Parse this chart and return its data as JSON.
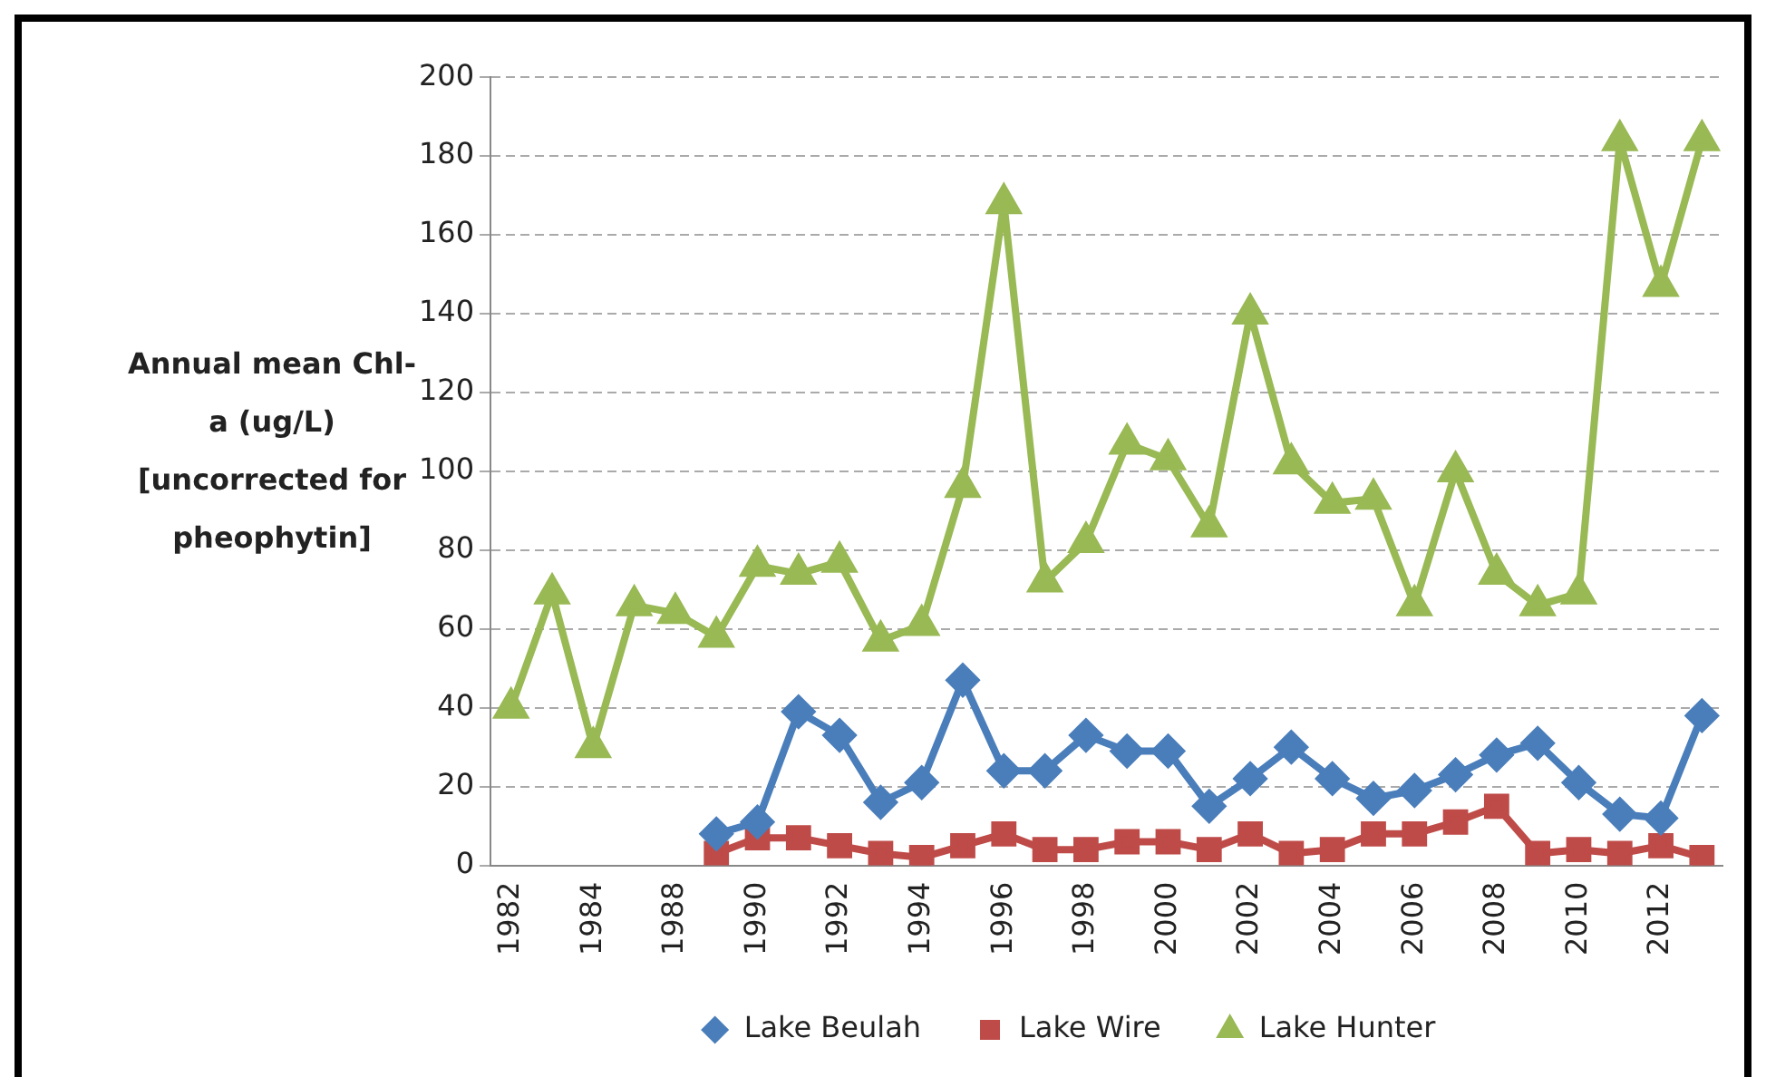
{
  "chart_data": {
    "type": "line",
    "ylabel": "Annual mean Chl-a (ug/L) [uncorrected for pheophytin]",
    "categories": [
      "1982",
      null,
      "1984",
      null,
      "1988",
      null,
      "1990",
      null,
      "1992",
      null,
      "1994",
      null,
      "1996",
      null,
      "1998",
      null,
      "2000",
      null,
      "2002",
      null,
      "2004",
      null,
      "2006",
      null,
      "2008",
      null,
      "2010",
      null,
      "2012",
      null
    ],
    "series": [
      {
        "name": "Lake Beulah",
        "color": "#4a7ebb",
        "marker": "diamond",
        "values": [
          null,
          null,
          null,
          null,
          null,
          8,
          11,
          39,
          33,
          16,
          21,
          47,
          24,
          24,
          33,
          29,
          29,
          15,
          22,
          30,
          22,
          17,
          19,
          23,
          28,
          31,
          21,
          13,
          12,
          38
        ]
      },
      {
        "name": "Lake Wire",
        "color": "#be4b48",
        "marker": "square",
        "values": [
          null,
          null,
          null,
          null,
          null,
          3,
          7,
          7,
          5,
          3,
          2,
          5,
          8,
          4,
          4,
          6,
          6,
          4,
          8,
          3,
          4,
          8,
          8,
          11,
          15,
          3,
          4,
          3,
          5,
          2
        ]
      },
      {
        "name": "Lake Hunter",
        "color": "#98b954",
        "marker": "triangle",
        "values": [
          40,
          69,
          30,
          66,
          64,
          58,
          76,
          74,
          77,
          57,
          61,
          96,
          168,
          72,
          82,
          107,
          103,
          86,
          140,
          102,
          92,
          93,
          66,
          100,
          74,
          66,
          69,
          184,
          147,
          184
        ]
      }
    ],
    "ylim": [
      0,
      200
    ],
    "yticks": [
      0,
      20,
      40,
      60,
      80,
      100,
      120,
      140,
      160,
      180,
      200
    ],
    "grid": "y",
    "legend": "bottom",
    "line_style": "solid"
  }
}
